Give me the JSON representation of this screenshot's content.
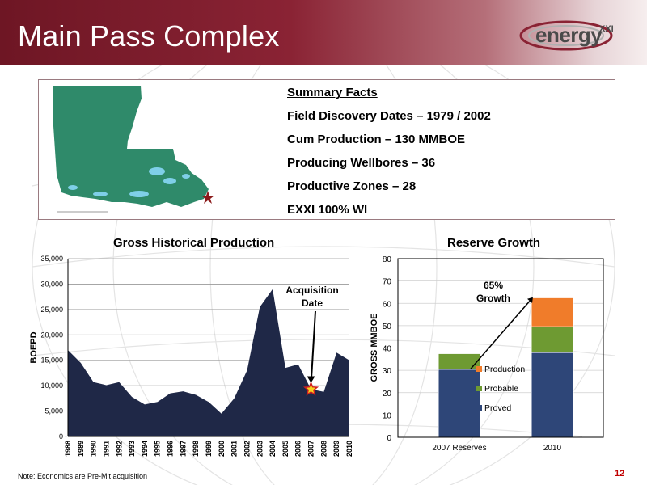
{
  "slide": {
    "title": "Main Pass Complex",
    "logo_text": "energy",
    "logo_sup": "XXI",
    "note": "Note: Economics are Pre-Mit acquisition",
    "page_number": "12"
  },
  "summary": {
    "heading": "Summary Facts",
    "facts": [
      "Field Discovery Dates – 1979 / 2002",
      "Cum Production – 130 MMBOE",
      "Producing Wellbores –  36",
      "Productive Zones –  28",
      "EXXI 100% WI"
    ]
  },
  "colors": {
    "header": "#7a1c2b",
    "area": "#1f2847",
    "proved": "#2e4678",
    "probable": "#6e9a32",
    "production": "#f07c2a",
    "star": "#8b1a1a",
    "map_land": "#2f8a6a",
    "map_water": "#7fcfe8"
  },
  "chart_data": [
    {
      "type": "area",
      "title": "Gross Historical Production",
      "ylabel": "BOEPD",
      "xlabel": "",
      "ylim": [
        0,
        35000
      ],
      "yticks": [
        0,
        5000,
        10000,
        15000,
        20000,
        25000,
        30000,
        35000
      ],
      "ytick_labels": [
        "0",
        "5,000",
        "10,000",
        "15,000",
        "20,000",
        "25,000",
        "30,000",
        "35,000"
      ],
      "x": [
        "1988",
        "1989",
        "1990",
        "1991",
        "1992",
        "1993",
        "1994",
        "1995",
        "1996",
        "1997",
        "1998",
        "1999",
        "2000",
        "2001",
        "2002",
        "2003",
        "2004",
        "2005",
        "2006",
        "2007",
        "2008",
        "2009",
        "2010"
      ],
      "values": [
        17000,
        14500,
        10700,
        10100,
        10700,
        7800,
        6300,
        6800,
        8500,
        8900,
        8200,
        6800,
        4500,
        7500,
        13000,
        25500,
        29000,
        13500,
        14200,
        9300,
        8800,
        16500,
        15000
      ],
      "annotation": {
        "text_lines": [
          "Acquisition",
          "Date"
        ],
        "year": "2007",
        "value": 9300
      }
    },
    {
      "type": "bar",
      "stacked": true,
      "title": "Reserve Growth",
      "ylabel": "GROSS MMBOE",
      "ylim": [
        0,
        80
      ],
      "yticks": [
        0,
        10,
        20,
        30,
        40,
        50,
        60,
        70,
        80
      ],
      "categories": [
        "2007 Reserves",
        "2010"
      ],
      "series": [
        {
          "name": "Proved",
          "values": [
            30.5,
            38
          ]
        },
        {
          "name": "Probable",
          "values": [
            7,
            11.5
          ]
        },
        {
          "name": "Production",
          "values": [
            0,
            13
          ]
        }
      ],
      "legend_order": [
        "Production",
        "Probable",
        "Proved"
      ],
      "annotation": {
        "text_lines": [
          "65%",
          "Growth"
        ]
      }
    }
  ]
}
